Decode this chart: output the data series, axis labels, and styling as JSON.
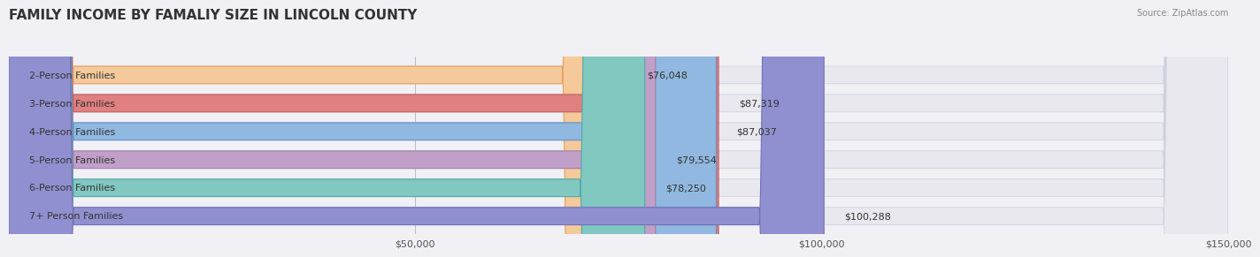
{
  "title": "FAMILY INCOME BY FAMALIY SIZE IN LINCOLN COUNTY",
  "source": "Source: ZipAtlas.com",
  "categories": [
    "2-Person Families",
    "3-Person Families",
    "4-Person Families",
    "5-Person Families",
    "6-Person Families",
    "7+ Person Families"
  ],
  "values": [
    76048,
    87319,
    87037,
    79554,
    78250,
    100288
  ],
  "bar_colors": [
    "#f5c99a",
    "#e08080",
    "#90b8e0",
    "#c0a0c8",
    "#80c8c0",
    "#9090d0"
  ],
  "bar_edge_colors": [
    "#e8a060",
    "#c06060",
    "#6090c8",
    "#a080a8",
    "#50a8a8",
    "#7070b8"
  ],
  "value_labels": [
    "$76,048",
    "$87,319",
    "$87,037",
    "$79,554",
    "$78,250",
    "$100,288"
  ],
  "xlim": [
    0,
    150000
  ],
  "xtick_values": [
    0,
    50000,
    100000,
    150000
  ],
  "xtick_labels": [
    "",
    "$50,000",
    "$100,000",
    "$150,000"
  ],
  "background_color": "#f0f0f5",
  "bar_bg_color": "#e8e8ee",
  "title_fontsize": 11,
  "label_fontsize": 8,
  "value_fontsize": 8,
  "bar_height": 0.62
}
